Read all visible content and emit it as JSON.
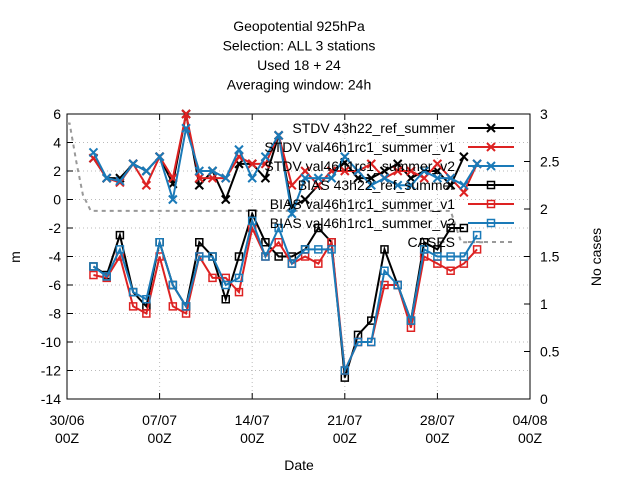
{
  "chart_data": {
    "type": "line",
    "title_lines": [
      "Geopotential 925hPa",
      "Selection: ALL       3 stations",
      "Used  18  + 24",
      "Averaging window: 24h"
    ],
    "xlabel": "Date",
    "ylabel": "m",
    "y2label": "No cases",
    "xlim": [
      0,
      35
    ],
    "ylim": [
      -14,
      6
    ],
    "y2lim": [
      0,
      3
    ],
    "x_ticks": [
      {
        "pos": 0,
        "line1": "30/06",
        "line2": "00Z"
      },
      {
        "pos": 7,
        "line1": "07/07",
        "line2": "00Z"
      },
      {
        "pos": 14,
        "line1": "14/07",
        "line2": "00Z"
      },
      {
        "pos": 21,
        "line1": "21/07",
        "line2": "00Z"
      },
      {
        "pos": 28,
        "line1": "28/07",
        "line2": "00Z"
      },
      {
        "pos": 35,
        "line1": "04/08",
        "line2": "00Z"
      }
    ],
    "y_ticks": [
      -14,
      -12,
      -10,
      -8,
      -6,
      -4,
      -2,
      0,
      2,
      4,
      6
    ],
    "y2_ticks": [
      0,
      0.5,
      1,
      1.5,
      2,
      2.5,
      3
    ],
    "x": [
      2,
      3,
      4,
      5,
      6,
      7,
      8,
      9,
      10,
      11,
      12,
      13,
      14,
      15,
      16,
      17,
      18,
      19,
      20,
      21,
      22,
      23,
      24,
      25,
      26,
      27,
      28,
      29,
      30,
      31
    ],
    "series": [
      {
        "name": "STDV 43h22_ref_summer",
        "color": "#000000",
        "marker": "x",
        "axis": "y",
        "values": [
          2.9,
          1.5,
          1.5,
          2.5,
          2.0,
          3.0,
          1.1,
          6.0,
          1.0,
          2.0,
          0.0,
          2.5,
          2.5,
          1.5,
          4.5,
          -0.5,
          0.0,
          1.0,
          2.0,
          2.6,
          1.5,
          1.5,
          2.0,
          2.5,
          1.5,
          2.0,
          2.0,
          1.0,
          3.0,
          null
        ]
      },
      {
        "name": "STDV val46h1rc1_summer_v1",
        "color": "#dd2222",
        "marker": "x",
        "axis": "y",
        "values": [
          2.9,
          1.5,
          1.2,
          2.5,
          1.0,
          3.0,
          1.5,
          6.0,
          1.5,
          1.5,
          1.5,
          3.0,
          2.5,
          2.5,
          4.5,
          1.0,
          2.0,
          1.0,
          2.0,
          2.0,
          2.0,
          2.5,
          1.5,
          2.0,
          2.0,
          1.5,
          2.5,
          1.5,
          0.5,
          2.5
        ]
      },
      {
        "name": "STDV val46h1rc1_summer_v2",
        "color": "#1a7ab8",
        "marker": "x",
        "axis": "y",
        "values": [
          3.3,
          1.5,
          1.3,
          2.5,
          2.0,
          3.0,
          0.0,
          5.0,
          2.0,
          2.0,
          1.5,
          3.5,
          1.5,
          3.0,
          4.5,
          -1.0,
          1.5,
          1.5,
          1.5,
          3.0,
          2.0,
          1.0,
          1.5,
          1.0,
          1.0,
          2.0,
          1.5,
          1.5,
          1.0,
          2.5
        ]
      },
      {
        "name": "BIAS 43h22_ref_summer",
        "color": "#000000",
        "marker": "s",
        "axis": "y",
        "values": [
          -4.7,
          -5.3,
          -2.5,
          -6.5,
          -7.5,
          -3.0,
          -6.0,
          -7.5,
          -3.0,
          -4.0,
          -7.0,
          -4.0,
          -1.0,
          -3.0,
          -4.0,
          -4.0,
          -3.5,
          -2.0,
          -3.0,
          -12.5,
          -9.5,
          -8.5,
          -3.5,
          -6.0,
          -8.5,
          -3.0,
          -3.5,
          -2.0,
          -2.0,
          null
        ]
      },
      {
        "name": "BIAS val46h1rc1_summer_v1",
        "color": "#dd2222",
        "marker": "s",
        "axis": "y",
        "values": [
          -5.3,
          -5.5,
          -4.0,
          -7.5,
          -8.0,
          -4.0,
          -7.5,
          -8.0,
          -4.0,
          -5.5,
          -5.5,
          -6.5,
          -2.0,
          -4.0,
          -3.0,
          -4.5,
          -4.0,
          -4.5,
          -3.0,
          -12.0,
          -10.0,
          -10.0,
          -6.0,
          -6.0,
          -9.0,
          -4.0,
          -4.5,
          -5.0,
          -4.5,
          -3.5
        ]
      },
      {
        "name": "BIAS val46h1rc1_summer_v2",
        "color": "#1a7ab8",
        "marker": "s",
        "axis": "y",
        "values": [
          -4.7,
          -5.4,
          -3.5,
          -6.5,
          -7.0,
          -3.0,
          -6.0,
          -7.5,
          -4.0,
          -4.0,
          -6.0,
          -5.5,
          -1.5,
          -4.0,
          -2.0,
          -4.5,
          -3.5,
          -3.5,
          -3.5,
          -12.0,
          -10.0,
          -10.0,
          -5.0,
          -6.0,
          -8.5,
          -3.5,
          -4.0,
          -4.0,
          -4.0,
          -2.5
        ]
      },
      {
        "name": "CASES",
        "color": "#999999",
        "marker": "none",
        "dashed": true,
        "axis": "y2",
        "steps": [
          [
            0,
            2.9
          ],
          [
            0.2,
            2.9
          ],
          [
            0.7,
            2.5
          ],
          [
            1.2,
            2.15
          ],
          [
            1.8,
            1.98
          ],
          [
            29,
            1.98
          ],
          [
            29.8,
            1.65
          ],
          [
            31.8,
            1.65
          ]
        ]
      }
    ]
  }
}
